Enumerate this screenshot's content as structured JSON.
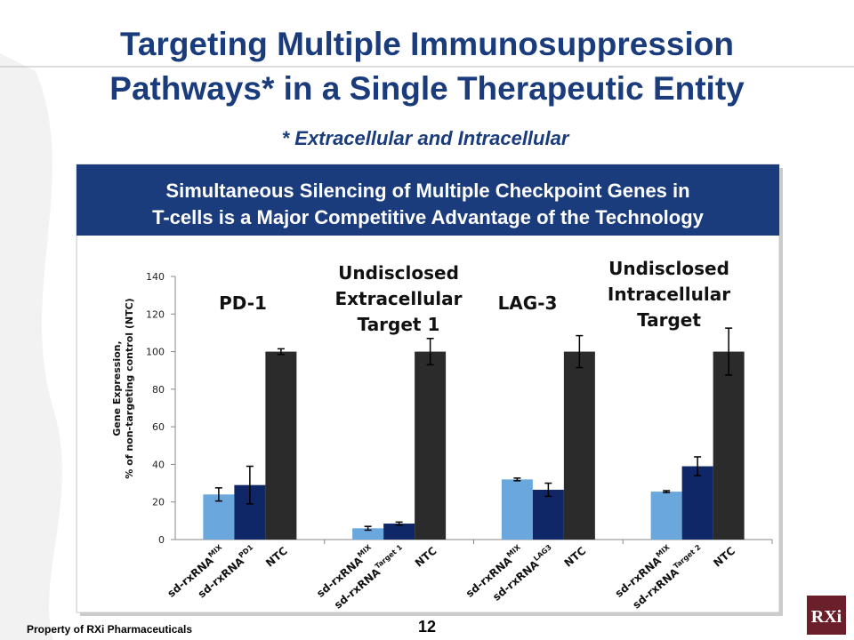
{
  "header": {
    "title": [
      "Targeting Multiple Immunosuppression",
      "Pathways* in a Single Therapeutic Entity"
    ],
    "subtitle": "* Extracellular and Intracellular"
  },
  "banner": [
    "Simultaneous Silencing of Multiple Checkpoint Genes in",
    "T-cells is a Major Competitive Advantage of the Technology"
  ],
  "chart_data": {
    "type": "bar",
    "y_label": [
      "Gene Expression,",
      "% of non-targeting control (NTC)"
    ],
    "categories": [
      [
        "PD-1"
      ],
      [
        "Undisclosed",
        "Extracellular",
        "Target 1"
      ],
      [
        "LAG-3"
      ],
      [
        "Undisclosed",
        "Intracellular",
        "Target"
      ]
    ],
    "series": [
      {
        "color": "#6aa7dd",
        "values": [
          24,
          6,
          32,
          25.5
        ],
        "errors": [
          3.5,
          1,
          0.7,
          0.5
        ],
        "labels": [
          {
            "text": "sd-rxRNA",
            "sup": "MIX"
          },
          {
            "text": "sd-rxRNA",
            "sup": "MIX"
          },
          {
            "text": "sd-rxRNA",
            "sup": "MIX"
          },
          {
            "text": "sd-rxRNA",
            "sup": "MIX"
          }
        ]
      },
      {
        "color": "#0f2766",
        "values": [
          29,
          8.5,
          26.5,
          39
        ],
        "errors": [
          10,
          0.8,
          3.5,
          5
        ],
        "labels": [
          {
            "text": "sd-rxRNA",
            "sup": "PD1"
          },
          {
            "text": "sd-rxRNA",
            "sup": "Target 1"
          },
          {
            "text": "sd-rxRNA",
            "sup": "LAG3"
          },
          {
            "text": "sd-rxRNA",
            "sup": "Target 2"
          }
        ]
      },
      {
        "color": "#2b2b2b",
        "values": [
          100,
          100,
          100,
          100
        ],
        "errors": [
          1.5,
          7,
          8.5,
          12.5
        ],
        "labels": [
          {
            "text": "NTC"
          },
          {
            "text": "NTC"
          },
          {
            "text": "NTC"
          },
          {
            "text": "NTC"
          }
        ]
      }
    ],
    "ylim": [
      0,
      140
    ],
    "yticks": [
      0,
      20,
      40,
      60,
      80,
      100,
      120,
      140
    ]
  },
  "footer": {
    "owner": "Property of RXi Pharmaceuticals",
    "page": "12",
    "logo": "RXi"
  }
}
